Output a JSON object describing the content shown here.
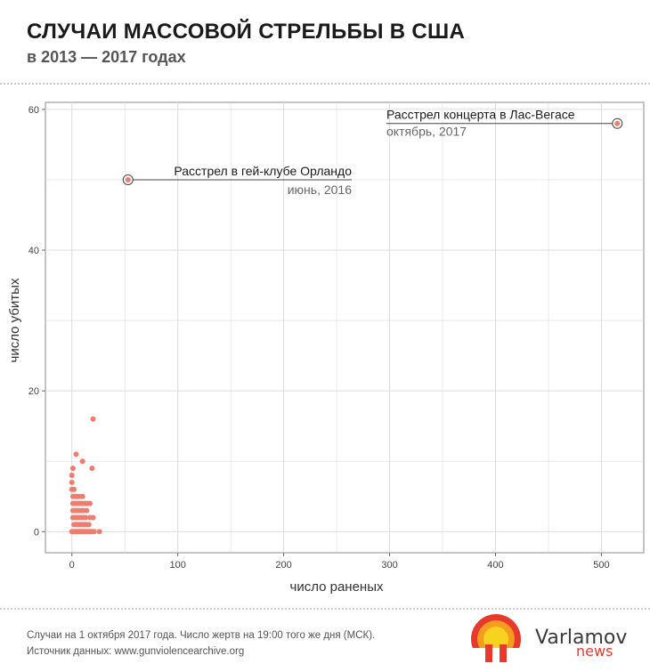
{
  "header": {
    "title": "СЛУЧАИ МАССОВОЙ СТРЕЛЬБЫ В США",
    "subtitle": "в 2013 — 2017 годах"
  },
  "footer": {
    "note": "Случаи на 1 октября 2017 года. Число жертв на 19:00 того же дня (МСК).",
    "source": "Источник данных: www.gunviolencearchive.org"
  },
  "brand": {
    "name": "Varlamov",
    "sub": "news"
  },
  "colors": {
    "point": "#f07c6e",
    "grid": "#dcdcdc",
    "panel_border": "#8a8a8a",
    "brand_red": "#e8392d",
    "brand_orange": "#f39c1f",
    "brand_yellow": "#f7d21e"
  },
  "chart_data": {
    "type": "scatter",
    "xlabel": "число раненых",
    "ylabel": "число убитых",
    "xlim": [
      -25,
      540
    ],
    "ylim": [
      -3,
      61
    ],
    "xticks": [
      0,
      100,
      200,
      300,
      400,
      500
    ],
    "yticks": [
      0,
      20,
      40,
      60
    ],
    "grid": true,
    "points": [
      {
        "x": 0,
        "y": 0
      },
      {
        "x": 1,
        "y": 0
      },
      {
        "x": 2,
        "y": 0
      },
      {
        "x": 3,
        "y": 0
      },
      {
        "x": 4,
        "y": 0
      },
      {
        "x": 5,
        "y": 0
      },
      {
        "x": 6,
        "y": 0
      },
      {
        "x": 7,
        "y": 0
      },
      {
        "x": 8,
        "y": 0
      },
      {
        "x": 9,
        "y": 0
      },
      {
        "x": 10,
        "y": 0
      },
      {
        "x": 11,
        "y": 0
      },
      {
        "x": 12,
        "y": 0
      },
      {
        "x": 13,
        "y": 0
      },
      {
        "x": 14,
        "y": 0
      },
      {
        "x": 15,
        "y": 0
      },
      {
        "x": 16,
        "y": 0
      },
      {
        "x": 17,
        "y": 0
      },
      {
        "x": 18,
        "y": 0
      },
      {
        "x": 19,
        "y": 0
      },
      {
        "x": 21,
        "y": 0
      },
      {
        "x": 26,
        "y": 0
      },
      {
        "x": 2,
        "y": 1
      },
      {
        "x": 4,
        "y": 1
      },
      {
        "x": 6,
        "y": 1
      },
      {
        "x": 8,
        "y": 1
      },
      {
        "x": 10,
        "y": 1
      },
      {
        "x": 12,
        "y": 1
      },
      {
        "x": 14,
        "y": 1
      },
      {
        "x": 16,
        "y": 1
      },
      {
        "x": 1,
        "y": 2
      },
      {
        "x": 3,
        "y": 2
      },
      {
        "x": 5,
        "y": 2
      },
      {
        "x": 7,
        "y": 2
      },
      {
        "x": 9,
        "y": 2
      },
      {
        "x": 11,
        "y": 2
      },
      {
        "x": 13,
        "y": 2
      },
      {
        "x": 17,
        "y": 2
      },
      {
        "x": 20,
        "y": 2
      },
      {
        "x": 1,
        "y": 3
      },
      {
        "x": 3,
        "y": 3
      },
      {
        "x": 5,
        "y": 3
      },
      {
        "x": 7,
        "y": 3
      },
      {
        "x": 9,
        "y": 3
      },
      {
        "x": 11,
        "y": 3
      },
      {
        "x": 14,
        "y": 3
      },
      {
        "x": 1,
        "y": 4
      },
      {
        "x": 3,
        "y": 4
      },
      {
        "x": 5,
        "y": 4
      },
      {
        "x": 7,
        "y": 4
      },
      {
        "x": 9,
        "y": 4
      },
      {
        "x": 11,
        "y": 4
      },
      {
        "x": 13,
        "y": 4
      },
      {
        "x": 15,
        "y": 4
      },
      {
        "x": 17,
        "y": 4
      },
      {
        "x": 1,
        "y": 5
      },
      {
        "x": 3,
        "y": 5
      },
      {
        "x": 5,
        "y": 5
      },
      {
        "x": 7,
        "y": 5
      },
      {
        "x": 10,
        "y": 5
      },
      {
        "x": 0,
        "y": 6
      },
      {
        "x": 2,
        "y": 6
      },
      {
        "x": 0,
        "y": 7
      },
      {
        "x": 0,
        "y": 8
      },
      {
        "x": 1,
        "y": 9
      },
      {
        "x": 19,
        "y": 9
      },
      {
        "x": 10,
        "y": 10
      },
      {
        "x": 4,
        "y": 11
      },
      {
        "x": 20,
        "y": 16
      }
    ],
    "annotations": [
      {
        "x": 53,
        "y": 50,
        "label": "Расстрел в гей-клубе Орландо",
        "sublabel": "июнь, 2016"
      },
      {
        "x": 515,
        "y": 58,
        "label": "Расстрел концерта в Лас-Вегасе",
        "sublabel": "октябрь, 2017"
      }
    ]
  }
}
